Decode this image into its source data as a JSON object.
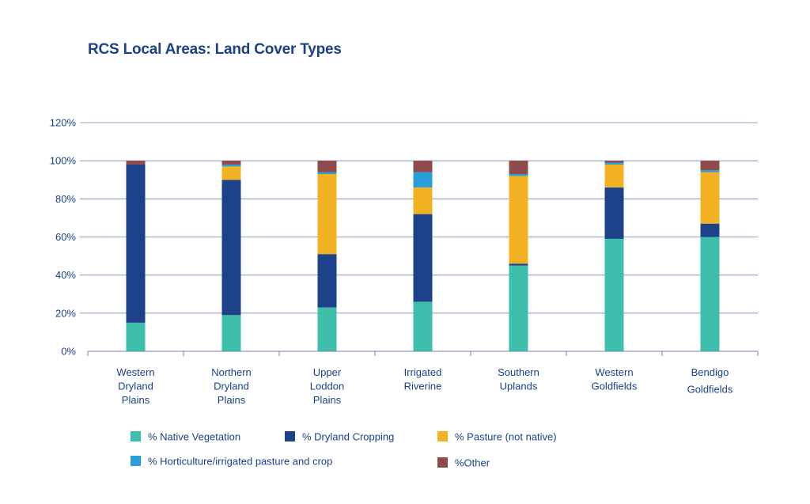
{
  "chart_data": {
    "type": "bar",
    "stacked": true,
    "title": "RCS Local Areas: Land Cover Types",
    "xlabel": "",
    "ylabel": "",
    "ylim": [
      0,
      120
    ],
    "y_ticks": [
      "0%",
      "20%",
      "40%",
      "60%",
      "80%",
      "100%",
      "120%"
    ],
    "grid": "horizontal",
    "legend_position": "bottom",
    "categories": [
      [
        "Western",
        "Dryland",
        "Plains"
      ],
      [
        "Northern",
        "Dryland",
        "Plains"
      ],
      [
        "Upper",
        "Loddon",
        "Plains"
      ],
      [
        "Irrigated",
        "Riverine"
      ],
      [
        "Southern",
        "Uplands"
      ],
      [
        "Western",
        "Goldfields"
      ],
      [
        "Bendigo",
        "Goldfields"
      ]
    ],
    "series": [
      {
        "name": "% Native Vegetation",
        "color": "#3dbfab",
        "values": [
          15,
          19,
          23,
          26,
          45,
          59,
          60
        ]
      },
      {
        "name": "% Dryland Cropping",
        "color": "#1d4289",
        "values": [
          83,
          71,
          28,
          46,
          1,
          27,
          7
        ]
      },
      {
        "name": "% Pasture (not native)",
        "color": "#f3b224",
        "values": [
          0,
          7,
          42,
          14,
          46,
          12,
          27
        ]
      },
      {
        "name": "% Horticulture/irrigated pasture and crop",
        "color": "#2a9ed8",
        "values": [
          0,
          1,
          1,
          8,
          1,
          1,
          1
        ]
      },
      {
        "name": "%Other",
        "color": "#8f4b4b",
        "values": [
          2,
          2,
          6,
          6,
          7,
          1,
          5
        ]
      }
    ]
  }
}
